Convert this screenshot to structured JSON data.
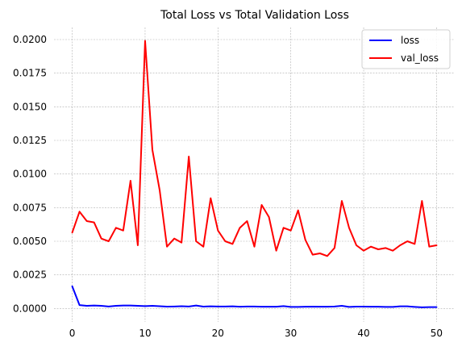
{
  "chart_data": {
    "type": "line",
    "title": "Total Loss vs Total Validation Loss",
    "xlabel": "",
    "ylabel": "",
    "xlim": [
      -2.5,
      52.5
    ],
    "ylim": [
      -0.001,
      0.0209
    ],
    "xticks": [
      0,
      10,
      20,
      30,
      40,
      50
    ],
    "xtick_labels": [
      "0",
      "10",
      "20",
      "30",
      "40",
      "50"
    ],
    "yticks": [
      0.0,
      0.0025,
      0.005,
      0.0075,
      0.01,
      0.0125,
      0.015,
      0.0175,
      0.02
    ],
    "ytick_labels": [
      "0.0000",
      "0.0025",
      "0.0050",
      "0.0075",
      "0.0100",
      "0.0125",
      "0.0150",
      "0.0175",
      "0.0200"
    ],
    "grid": true,
    "legend_position": "top-right",
    "x": [
      0,
      1,
      2,
      3,
      4,
      5,
      6,
      7,
      8,
      9,
      10,
      11,
      12,
      13,
      14,
      15,
      16,
      17,
      18,
      19,
      20,
      21,
      22,
      23,
      24,
      25,
      26,
      27,
      28,
      29,
      30,
      31,
      32,
      33,
      34,
      35,
      36,
      37,
      38,
      39,
      40,
      41,
      42,
      43,
      44,
      45,
      46,
      47,
      48,
      49,
      50
    ],
    "series": [
      {
        "name": "loss",
        "color": "#0000ff",
        "values": [
          0.00165,
          0.00025,
          0.0002,
          0.00022,
          0.0002,
          0.00015,
          0.0002,
          0.00022,
          0.00022,
          0.0002,
          0.00018,
          0.0002,
          0.00017,
          0.00014,
          0.00015,
          0.00017,
          0.00015,
          0.00022,
          0.00014,
          0.00016,
          0.00015,
          0.00015,
          0.00016,
          0.00013,
          0.00015,
          0.00015,
          0.00013,
          0.00013,
          0.00013,
          0.00018,
          0.00012,
          0.00012,
          0.00013,
          0.00014,
          0.00013,
          0.00013,
          0.00015,
          0.0002,
          0.00012,
          0.00014,
          0.00014,
          0.00013,
          0.00013,
          0.00012,
          0.00012,
          0.00016,
          0.00016,
          0.00012,
          9e-05,
          0.0001,
          0.0001
        ]
      },
      {
        "name": "val_loss",
        "color": "#ff0000",
        "values": [
          0.00565,
          0.0072,
          0.0065,
          0.0064,
          0.0052,
          0.005,
          0.006,
          0.0058,
          0.0095,
          0.0047,
          0.0199,
          0.0118,
          0.0088,
          0.0046,
          0.0052,
          0.0049,
          0.0113,
          0.005,
          0.0046,
          0.0082,
          0.0058,
          0.005,
          0.0048,
          0.006,
          0.0065,
          0.0046,
          0.0077,
          0.0068,
          0.0043,
          0.006,
          0.0058,
          0.0073,
          0.0051,
          0.004,
          0.0041,
          0.0039,
          0.0045,
          0.008,
          0.006,
          0.0047,
          0.0043,
          0.0046,
          0.0044,
          0.0045,
          0.0043,
          0.0047,
          0.005,
          0.0048,
          0.008,
          0.0046,
          0.0047
        ]
      }
    ]
  }
}
